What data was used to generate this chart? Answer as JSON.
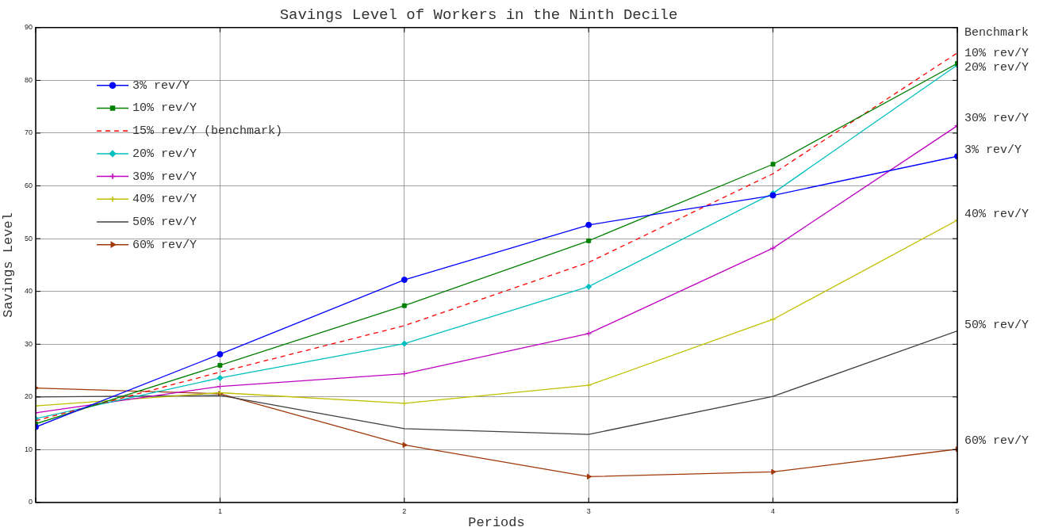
{
  "chart_data": {
    "type": "line",
    "title": "Savings Level of Workers in the Ninth Decile",
    "xlabel": "Periods",
    "ylabel": "Savings Level",
    "x": [
      0,
      1,
      2,
      3,
      4,
      5
    ],
    "series": [
      {
        "name": "3% rev/Y",
        "color": "#0000ff",
        "marker": "circle",
        "values": [
          14.3,
          28.1,
          42.2,
          52.6,
          58.2,
          65.6
        ]
      },
      {
        "name": "10% rev/Y",
        "color": "#008000",
        "marker": "square",
        "values": [
          14.9,
          26.0,
          37.3,
          49.6,
          64.1,
          83.2
        ]
      },
      {
        "name": "15% rev/Y (benchmark)",
        "color": "#ff0000",
        "marker": "none",
        "line_style": "dashed",
        "values": [
          15.5,
          24.7,
          33.5,
          45.5,
          62.3,
          85.2
        ]
      },
      {
        "name": "20% rev/Y",
        "color": "#00bfbf",
        "marker": "diamond",
        "values": [
          15.9,
          23.6,
          30.1,
          40.9,
          58.6,
          82.9
        ]
      },
      {
        "name": "30% rev/Y",
        "color": "#bf00bf",
        "marker": "cross",
        "values": [
          17.0,
          22.0,
          24.4,
          32.0,
          48.2,
          71.4
        ]
      },
      {
        "name": "40% rev/Y",
        "color": "#bfbf00",
        "marker": "cross",
        "values": [
          18.3,
          20.8,
          18.8,
          22.2,
          34.7,
          53.5
        ]
      },
      {
        "name": "50% rev/Y",
        "color": "#404040",
        "marker": "none",
        "values": [
          20.0,
          20.3,
          14.0,
          12.9,
          20.1,
          32.5
        ]
      },
      {
        "name": "60% rev/Y",
        "color": "#a0380a",
        "marker": "triangle",
        "values": [
          21.7,
          20.6,
          10.9,
          4.9,
          5.8,
          10.1
        ]
      }
    ],
    "xlim": [
      0,
      5
    ],
    "xticks": [
      {
        "value": 0,
        "label": null
      },
      1,
      2,
      3,
      4,
      5
    ],
    "ylim": [
      0,
      90
    ],
    "yticks": [
      0,
      10,
      20,
      30,
      40,
      50,
      60,
      70,
      80,
      90
    ],
    "grid": true,
    "legend": "top left",
    "line_style": "solid",
    "annotations": [
      "Benchmark",
      "10% rev/Y",
      "20% rev/Y",
      "30% rev/Y",
      "3% rev/Y",
      "40% rev/Y",
      "50% rev/Y",
      "60% rev/Y"
    ]
  }
}
